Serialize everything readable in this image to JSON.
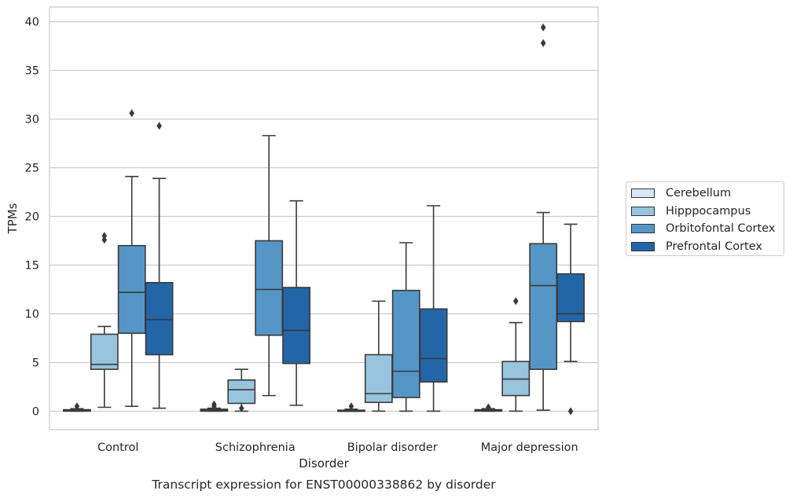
{
  "chart_data": {
    "type": "box",
    "title": "Transcript expression for ENST00000338862 by disorder",
    "xlabel": "Disorder",
    "ylabel": "TPMs",
    "ylim": [
      -1.9,
      41.5
    ],
    "yticks": [
      0,
      5,
      10,
      15,
      20,
      25,
      30,
      35,
      40
    ],
    "grid": "horizontal",
    "legend_position": "right",
    "categories": [
      "Control",
      "Schizophrenia",
      "Bipolar disorder",
      "Major depression"
    ],
    "series": [
      {
        "name": "Cerebellum",
        "color": "#d6e6f4",
        "boxes": [
          {
            "min": 0.0,
            "q1": 0.0,
            "median": 0.1,
            "q3": 0.15,
            "max": 0.25,
            "outliers": [
              0.5
            ]
          },
          {
            "min": 0.0,
            "q1": 0.0,
            "median": 0.1,
            "q3": 0.2,
            "max": 0.3,
            "outliers": [
              0.5,
              0.7
            ]
          },
          {
            "min": 0.0,
            "q1": 0.0,
            "median": 0.05,
            "q3": 0.1,
            "max": 0.2,
            "outliers": [
              0.5
            ]
          },
          {
            "min": 0.0,
            "q1": 0.0,
            "median": 0.05,
            "q3": 0.15,
            "max": 0.25,
            "outliers": [
              0.4
            ]
          }
        ]
      },
      {
        "name": "Hipppocampus",
        "color": "#98c4de",
        "boxes": [
          {
            "min": 0.4,
            "q1": 4.3,
            "median": 4.8,
            "q3": 7.9,
            "max": 8.7,
            "outliers": [
              17.6,
              18.0
            ]
          },
          {
            "min": 0.0,
            "q1": 0.8,
            "median": 2.2,
            "q3": 3.2,
            "max": 4.3,
            "outliers": [
              0.3
            ]
          },
          {
            "min": 0.0,
            "q1": 0.9,
            "median": 1.8,
            "q3": 5.8,
            "max": 11.3,
            "outliers": []
          },
          {
            "min": 0.0,
            "q1": 1.6,
            "median": 3.3,
            "q3": 5.1,
            "max": 9.1,
            "outliers": [
              11.3
            ]
          }
        ]
      },
      {
        "name": "Orbitofontal Cortex",
        "color": "#5596c7",
        "boxes": [
          {
            "min": 0.5,
            "q1": 8.0,
            "median": 12.2,
            "q3": 17.0,
            "max": 24.1,
            "outliers": [
              30.6
            ]
          },
          {
            "min": 1.6,
            "q1": 7.8,
            "median": 12.5,
            "q3": 17.5,
            "max": 28.3,
            "outliers": []
          },
          {
            "min": 0.0,
            "q1": 1.4,
            "median": 4.1,
            "q3": 12.4,
            "max": 17.3,
            "outliers": []
          },
          {
            "min": 0.1,
            "q1": 4.3,
            "median": 12.9,
            "q3": 17.2,
            "max": 20.4,
            "outliers": [
              37.8,
              39.4
            ]
          }
        ]
      },
      {
        "name": "Prefrontal Cortex",
        "color": "#2366a8",
        "boxes": [
          {
            "min": 0.3,
            "q1": 5.8,
            "median": 9.4,
            "q3": 13.2,
            "max": 23.9,
            "outliers": [
              29.3
            ]
          },
          {
            "min": 0.6,
            "q1": 4.9,
            "median": 8.3,
            "q3": 12.7,
            "max": 21.6,
            "outliers": []
          },
          {
            "min": 0.0,
            "q1": 3.0,
            "median": 5.4,
            "q3": 10.5,
            "max": 21.1,
            "outliers": []
          },
          {
            "min": 5.1,
            "q1": 9.2,
            "median": 10.0,
            "q3": 14.1,
            "max": 19.2,
            "outliers": [
              0.0
            ]
          }
        ]
      }
    ]
  }
}
